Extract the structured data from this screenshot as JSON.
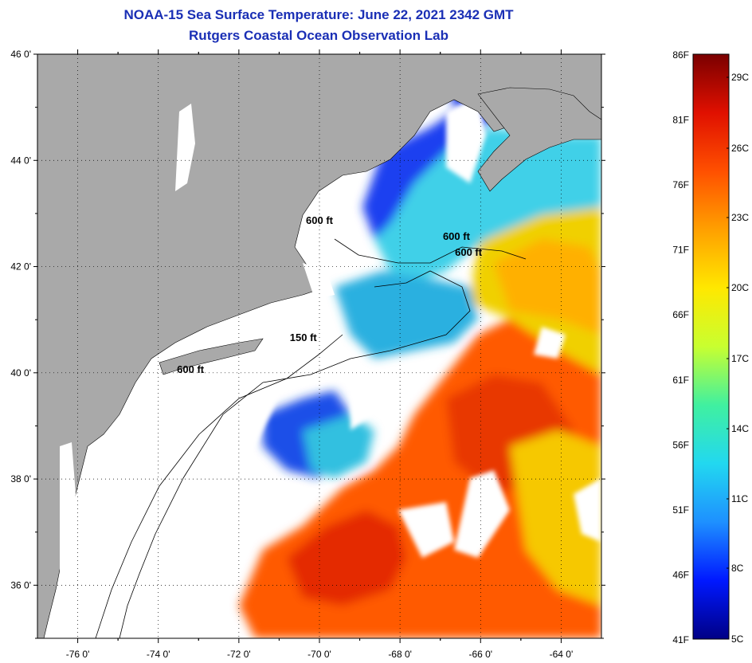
{
  "title": {
    "line1": "NOAA-15 Sea Surface Temperature:  June 22, 2021 2342 GMT",
    "line2": "Rutgers Coastal Ocean Observation Lab"
  },
  "map": {
    "lat_labels": [
      "46 0'",
      "44 0'",
      "42 0'",
      "40 0'",
      "38 0'",
      "36 0'"
    ],
    "lat_values": [
      46,
      44,
      42,
      40,
      38,
      36
    ],
    "lon_labels": [
      "-76 0'",
      "-74 0'",
      "-72 0'",
      "-70 0'",
      "-68 0'",
      "-66 0'",
      "-64 0'"
    ],
    "lon_values": [
      -76,
      -74,
      -72,
      -70,
      -68,
      -66,
      -64
    ],
    "lat_range": [
      35,
      46
    ],
    "lon_range": [
      -77,
      -63
    ],
    "grid": "dotted",
    "colors": {
      "land": "#a9a9a9",
      "cloud": "#ffffff",
      "coastline": "#000000"
    },
    "contour_labels": [
      {
        "text": "600 ft",
        "lon": -73.2,
        "lat": 40.0
      },
      {
        "text": "150 ft",
        "lon": -70.4,
        "lat": 40.6
      },
      {
        "text": "600 ft",
        "lon": -70.0,
        "lat": 42.8
      },
      {
        "text": "600 ft",
        "lon": -66.6,
        "lat": 42.5
      },
      {
        "text": "600 ft",
        "lon": -66.3,
        "lat": 42.2
      }
    ]
  },
  "colorbar": {
    "f_labels": [
      "86F",
      "81F",
      "76F",
      "71F",
      "66F",
      "61F",
      "56F",
      "51F",
      "46F",
      "41F"
    ],
    "c_labels": [
      "29C",
      "26C",
      "23C",
      "20C",
      "17C",
      "14C",
      "11C",
      "8C",
      "5C"
    ],
    "stops": [
      "#000085",
      "#0018ff",
      "#1e90ff",
      "#22d8f0",
      "#40f0a0",
      "#c8ff30",
      "#ffe800",
      "#ffa000",
      "#ff5000",
      "#e01000",
      "#7a0000"
    ]
  }
}
